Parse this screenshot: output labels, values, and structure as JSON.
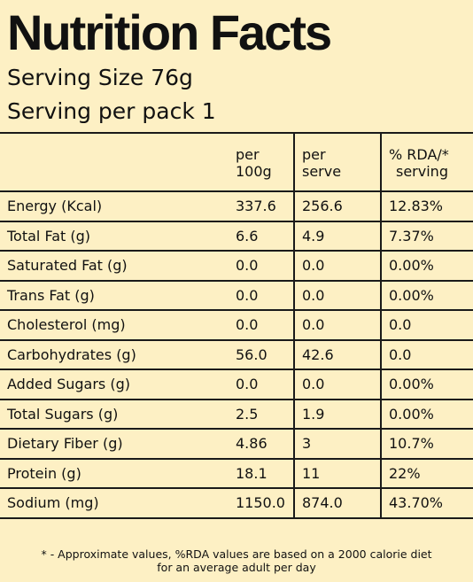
{
  "title": "Nutrition Facts",
  "serving_size": "Serving Size 76g",
  "serving_pack": "Serving per pack 1",
  "table": {
    "headers": {
      "per100_line1": "per",
      "per100_line2": "100g",
      "serve_line1": "per",
      "serve_line2": "serve",
      "rda_line1": "% RDA/*",
      "rda_line2": "serving"
    },
    "rows": [
      {
        "nutrient": "Energy (Kcal)",
        "per100": "337.6",
        "serve": "256.6",
        "rda": "12.83%"
      },
      {
        "nutrient": "Total Fat (g)",
        "per100": "6.6",
        "serve": "4.9",
        "rda": "7.37%"
      },
      {
        "nutrient": "Saturated Fat (g)",
        "per100": "0.0",
        "serve": "0.0",
        "rda": "0.00%"
      },
      {
        "nutrient": "Trans Fat (g)",
        "per100": "0.0",
        "serve": "0.0",
        "rda": "0.00%"
      },
      {
        "nutrient": "Cholesterol (mg)",
        "per100": "0.0",
        "serve": "0.0",
        "rda": "0.0"
      },
      {
        "nutrient": "Carbohydrates (g)",
        "per100": "56.0",
        "serve": "42.6",
        "rda": "0.0"
      },
      {
        "nutrient": "Added Sugars (g)",
        "per100": "0.0",
        "serve": "0.0",
        "rda": "0.00%"
      },
      {
        "nutrient": "Total Sugars (g)",
        "per100": "2.5",
        "serve": "1.9",
        "rda": "0.00%"
      },
      {
        "nutrient": "Dietary Fiber (g)",
        "per100": "4.86",
        "serve": "3",
        "rda": "10.7%"
      },
      {
        "nutrient": "Protein (g)",
        "per100": "18.1",
        "serve": "11",
        "rda": "22%"
      },
      {
        "nutrient": "Sodium (mg)",
        "per100": "1150.0",
        "serve": "874.0",
        "rda": "43.70%"
      }
    ]
  },
  "footnote_line1": "* - Approximate values, %RDA values are based on a 2000 calorie diet",
  "footnote_line2": "for an average adult per day"
}
